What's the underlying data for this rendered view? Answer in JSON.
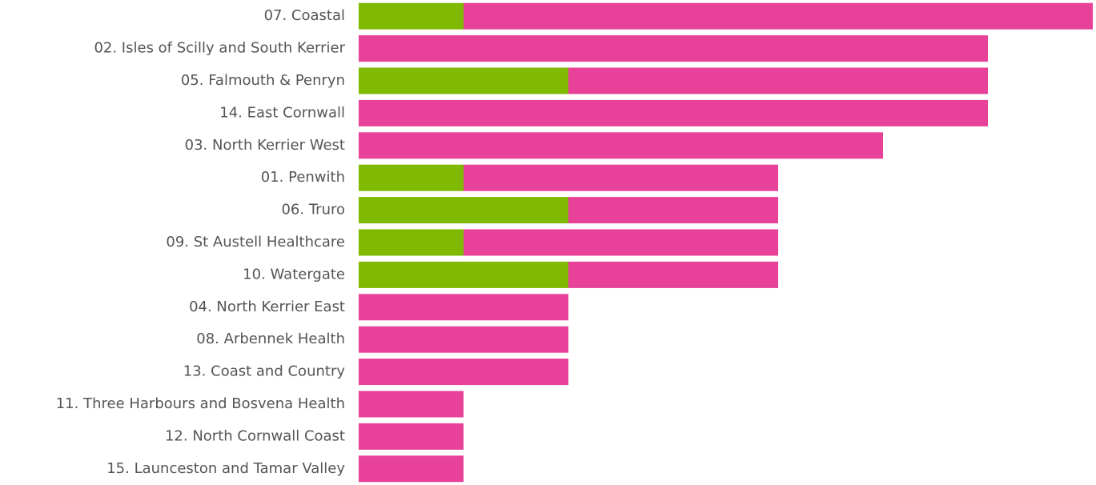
{
  "chart_data": {
    "type": "stacked-barh",
    "categories": [
      "07. Coastal",
      "02. Isles of Scilly and South Kerrier",
      "05. Falmouth & Penryn",
      "14. East Cornwall",
      "03. North Kerrier West",
      "01. Penwith",
      "06. Truro",
      "09. St Austell Healthcare",
      "10. Watergate",
      "04. North Kerrier East",
      "08. Arbennek Health",
      "13. Coast and Country",
      "11. Three Harbours and Bosvena Health",
      "12. North Cornwall Coast",
      "15. Launceston and Tamar Valley"
    ],
    "series": [
      {
        "color": "#7fba00",
        "values": [
          1,
          0,
          2,
          0,
          0,
          1,
          2,
          1,
          2,
          0,
          0,
          0,
          0,
          0,
          0
        ]
      },
      {
        "color": "#e8419a",
        "values": [
          6,
          6,
          4,
          6,
          5,
          3,
          2,
          3,
          2,
          2,
          2,
          2,
          1,
          1,
          1
        ]
      }
    ],
    "xlim": [
      0,
      7
    ]
  }
}
